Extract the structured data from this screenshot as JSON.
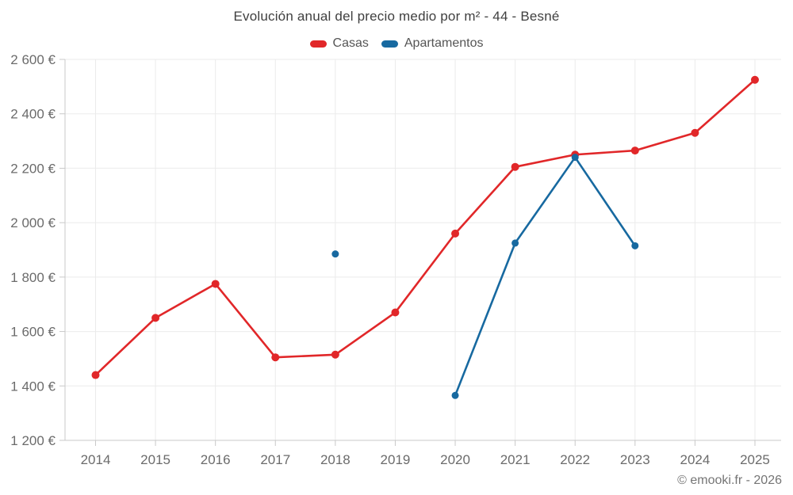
{
  "title": "Evolución anual del precio medio por m² - 44 - Besné",
  "legend": [
    {
      "label": "Casas",
      "color": "#e12729"
    },
    {
      "label": "Apartamentos",
      "color": "#1769a0"
    }
  ],
  "footer": {
    "text": "© emooki.fr - 2026"
  },
  "colors": {
    "grid": "#ebebeb",
    "axis": "#c9c9c9",
    "tick_text": "#6b6b6b",
    "title_text": "#3f3f3f",
    "casas": "#e12729",
    "apartamentos": "#1769a0"
  },
  "chart_data": {
    "type": "line",
    "x": [
      2014,
      2015,
      2016,
      2017,
      2018,
      2019,
      2020,
      2021,
      2022,
      2023,
      2024,
      2025
    ],
    "series": [
      {
        "name": "Casas",
        "color": "#e12729",
        "values": [
          1440,
          1650,
          1775,
          1505,
          1515,
          1670,
          1960,
          2205,
          2250,
          2265,
          2330,
          2525
        ]
      },
      {
        "name": "Apartamentos",
        "color": "#1769a0",
        "values": [
          null,
          null,
          null,
          null,
          1885,
          null,
          1365,
          1925,
          2240,
          1915,
          null,
          null
        ]
      }
    ],
    "title": "Evolución anual del precio medio por m² - 44 - Besné",
    "xlabel": "",
    "ylabel": "",
    "ylim": [
      1200,
      2600
    ],
    "y_ticks": [
      1200,
      1400,
      1600,
      1800,
      2000,
      2200,
      2400,
      2600
    ],
    "y_tick_labels": [
      "1 200 €",
      "1 400 €",
      "1 600 €",
      "1 800 €",
      "2 000 €",
      "2 200 €",
      "2 400 €",
      "2 600 €"
    ],
    "x_tick_labels": [
      "2014",
      "2015",
      "2016",
      "2017",
      "2018",
      "2019",
      "2020",
      "2021",
      "2022",
      "2023",
      "2024",
      "2025"
    ],
    "grid": true,
    "legend_position": "top"
  }
}
